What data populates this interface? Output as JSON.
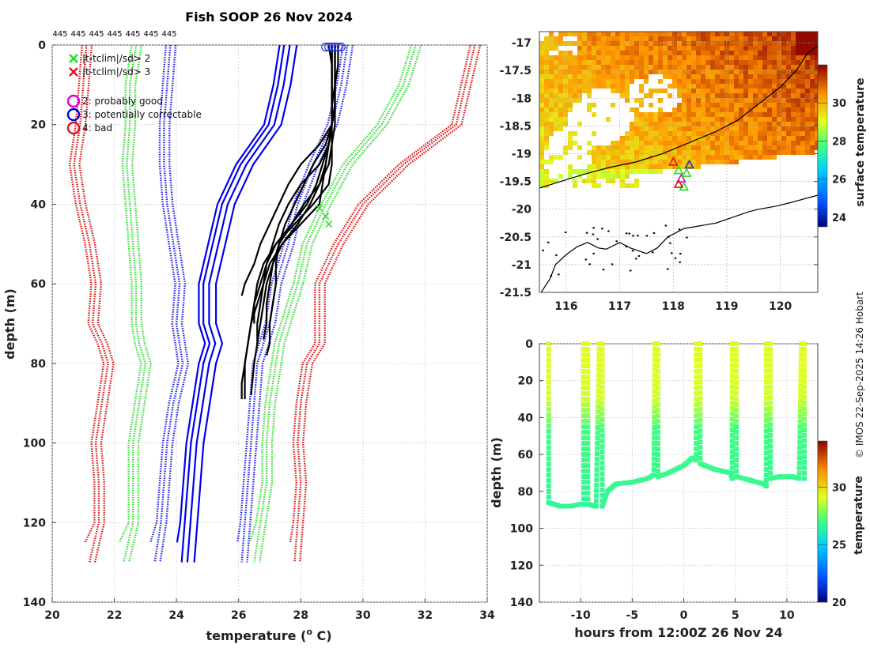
{
  "credit": "© IMOS 22-Sep-2025 14:26 Hobart",
  "chart_data": [
    {
      "id": "profiles",
      "type": "line",
      "title": "Fish SOOP 26 Nov 2024",
      "xlabel": "temperature (",
      "xlabel_sup": "o",
      "xlabel_tail": " C)",
      "ylabel": "depth (m)",
      "xlim": [
        20,
        34
      ],
      "ylim": [
        0,
        140
      ],
      "xticks": [
        "20",
        "22",
        "24",
        "26",
        "28",
        "30",
        "32",
        "34"
      ],
      "yticks": [
        "0",
        "20",
        "40",
        "60",
        "80",
        "100",
        "120",
        "140"
      ],
      "top_counts": [
        "445",
        "445",
        "445",
        "445",
        "445",
        "445",
        "445"
      ],
      "legend": [
        {
          "marker": "x",
          "color": "#22dd22",
          "label": "|t-tclim|/sd> 2"
        },
        {
          "marker": "x",
          "color": "#dd1111",
          "label": "|t-tclim|/sd> 3"
        },
        {
          "marker": "o",
          "color": "#dd00dd",
          "label": "2: probably good"
        },
        {
          "marker": "o",
          "color": "#0000dd",
          "label": "3: potentially correctable"
        },
        {
          "marker": "o",
          "color": "#dd1111",
          "label": "4: bad"
        }
      ],
      "clim_depths": [
        0,
        10,
        20,
        30,
        40,
        50,
        60,
        70,
        75,
        80,
        90,
        100,
        110,
        120,
        130
      ],
      "clim_series": [
        {
          "name": "mean -3sd",
          "color": "#dd1111",
          "temps": [
            21.1,
            21.0,
            20.9,
            20.7,
            20.9,
            21.2,
            21.4,
            21.3,
            21.6,
            21.8,
            21.6,
            21.4,
            21.5,
            21.5,
            21.2
          ]
        },
        {
          "name": "mean -2sd",
          "color": "#33dd33",
          "temps": [
            22.7,
            22.5,
            22.5,
            22.4,
            22.5,
            22.6,
            22.7,
            22.7,
            22.8,
            23.0,
            22.8,
            22.6,
            22.6,
            22.6,
            22.3
          ]
        },
        {
          "name": "mean -1sd",
          "color": "#2222ee",
          "temps": [
            23.8,
            23.7,
            23.6,
            23.6,
            23.7,
            23.9,
            24.1,
            24.0,
            24.1,
            24.2,
            23.9,
            23.7,
            23.6,
            23.5,
            23.3
          ]
        },
        {
          "name": "mean",
          "color": "#0000ee",
          "temps": [
            27.6,
            27.4,
            27.1,
            26.2,
            25.6,
            25.3,
            25.0,
            25.0,
            25.2,
            25.0,
            24.8,
            24.6,
            24.5,
            24.4,
            24.3
          ]
        },
        {
          "name": "mean +1sd",
          "color": "#2222ee",
          "temps": [
            29.5,
            29.3,
            29.0,
            28.4,
            27.9,
            27.6,
            27.2,
            27.0,
            26.8,
            26.6,
            26.5,
            26.4,
            26.3,
            26.2,
            26.1
          ]
        },
        {
          "name": "mean +2sd",
          "color": "#33dd33",
          "temps": [
            31.7,
            31.3,
            30.6,
            29.5,
            28.8,
            28.2,
            27.9,
            27.5,
            27.3,
            27.2,
            27.0,
            26.9,
            26.9,
            26.7,
            26.5
          ]
        },
        {
          "name": "mean +3sd",
          "color": "#dd1111",
          "temps": [
            33.6,
            33.3,
            33.0,
            31.3,
            30.0,
            29.2,
            28.6,
            28.6,
            28.6,
            28.2,
            28.0,
            27.9,
            28.0,
            27.9,
            27.8
          ]
        }
      ],
      "obs_profiles": [
        {
          "depths": [
            0,
            5,
            10,
            15,
            20,
            25,
            30,
            35,
            40,
            45,
            50,
            55,
            60,
            65,
            70,
            75,
            80,
            85,
            89
          ],
          "temps": [
            29.0,
            29.0,
            29.0,
            29.0,
            29.0,
            29.0,
            29.0,
            28.9,
            28.4,
            27.8,
            27.2,
            26.9,
            26.7,
            26.5,
            26.4,
            26.3,
            26.2,
            26.2,
            26.2
          ]
        },
        {
          "depths": [
            0,
            5,
            10,
            15,
            20,
            25,
            30,
            35,
            40,
            45,
            50,
            55,
            60,
            65,
            70,
            75
          ],
          "temps": [
            29.1,
            29.1,
            29.1,
            29.1,
            29.0,
            28.9,
            28.6,
            28.0,
            27.6,
            27.3,
            27.1,
            26.9,
            26.8,
            26.7,
            26.6,
            26.6
          ]
        },
        {
          "depths": [
            0,
            5,
            10,
            15,
            20,
            25,
            30,
            35,
            40,
            45,
            50,
            55,
            60,
            65,
            70,
            75,
            80,
            88
          ],
          "temps": [
            28.9,
            29.0,
            29.0,
            29.0,
            29.0,
            28.9,
            28.8,
            28.6,
            28.1,
            27.7,
            27.3,
            27.1,
            26.9,
            26.8,
            26.7,
            26.6,
            26.5,
            26.4
          ]
        },
        {
          "depths": [
            0,
            5,
            10,
            15,
            20,
            25,
            30,
            35,
            40,
            45,
            50,
            55,
            60,
            63
          ],
          "temps": [
            29.2,
            29.2,
            29.1,
            29.1,
            29.0,
            28.6,
            28.0,
            27.6,
            27.3,
            27.0,
            26.7,
            26.5,
            26.2,
            26.1
          ]
        },
        {
          "depths": [
            0,
            5,
            10,
            15,
            20,
            25,
            30,
            35,
            40,
            45,
            50,
            55,
            60,
            65,
            70,
            75,
            78
          ],
          "temps": [
            29.0,
            29.0,
            29.0,
            29.0,
            29.0,
            28.8,
            28.4,
            28.1,
            27.8,
            27.5,
            27.3,
            27.2,
            27.2,
            27.1,
            27.0,
            27.0,
            26.9
          ]
        },
        {
          "depths": [
            0,
            5,
            10,
            15,
            20,
            25,
            30,
            35,
            40,
            45,
            50,
            55,
            60,
            65,
            70
          ],
          "temps": [
            29.1,
            29.1,
            29.1,
            29.0,
            29.0,
            28.9,
            28.7,
            28.5,
            28.2,
            27.7,
            27.2,
            26.8,
            26.6,
            26.5,
            26.5
          ]
        },
        {
          "depths": [
            0,
            5,
            10,
            15,
            20,
            25,
            30,
            35,
            40,
            45,
            50,
            55,
            60,
            65,
            70,
            75,
            80,
            85,
            89
          ],
          "temps": [
            29.0,
            29.0,
            29.0,
            29.0,
            29.0,
            28.9,
            28.8,
            28.7,
            28.6,
            28.0,
            27.4,
            27.0,
            26.8,
            26.6,
            26.4,
            26.3,
            26.2,
            26.1,
            26.1
          ]
        },
        {
          "depths": [
            0,
            5,
            10,
            15,
            20,
            25,
            30,
            35,
            40,
            45,
            50,
            55,
            60,
            65,
            70,
            74
          ],
          "temps": [
            29.1,
            29.1,
            29.1,
            29.1,
            29.1,
            29.0,
            28.9,
            28.6,
            28.3,
            27.9,
            27.4,
            27.1,
            27.0,
            26.9,
            26.9,
            26.8
          ]
        }
      ],
      "flag_circles": [
        [
          28.8,
          0.5
        ],
        [
          28.9,
          0.5
        ],
        [
          29.0,
          0.5
        ],
        [
          29.1,
          0.5
        ],
        [
          29.2,
          0.5
        ],
        [
          29.3,
          0.5
        ]
      ],
      "flag_crosses": [
        [
          28.6,
          41
        ],
        [
          28.8,
          43
        ],
        [
          28.9,
          45
        ]
      ]
    },
    {
      "id": "map",
      "type": "heatmap",
      "colorbar_label": "surface temperature",
      "xlim": [
        115.5,
        120.7
      ],
      "ylim": [
        -21.5,
        -16.8
      ],
      "clim": [
        23.5,
        32
      ],
      "xticks": [
        "116",
        "117",
        "118",
        "119",
        "120"
      ],
      "yticks": [
        "-17",
        "-17.5",
        "-18",
        "-18.5",
        "-19",
        "-19.5",
        "-20",
        "-20.5",
        "-21",
        "-21.5"
      ],
      "cbar_ticks": [
        "24",
        "26",
        "28",
        "30"
      ],
      "coast_main": [
        [
          115.5,
          -21.55
        ],
        [
          115.7,
          -21.25
        ],
        [
          115.8,
          -21.0
        ],
        [
          116.0,
          -20.82
        ],
        [
          116.2,
          -20.68
        ],
        [
          116.4,
          -20.6
        ],
        [
          116.6,
          -20.7
        ],
        [
          116.75,
          -20.72
        ],
        [
          117.0,
          -20.6
        ],
        [
          117.2,
          -20.7
        ],
        [
          117.5,
          -20.8
        ],
        [
          117.7,
          -20.7
        ],
        [
          117.9,
          -20.5
        ],
        [
          118.2,
          -20.35
        ],
        [
          118.5,
          -20.3
        ],
        [
          118.8,
          -20.25
        ],
        [
          119.1,
          -20.15
        ],
        [
          119.4,
          -20.05
        ],
        [
          119.6,
          -20.0
        ],
        [
          119.9,
          -19.95
        ],
        [
          120.2,
          -19.88
        ],
        [
          120.5,
          -19.8
        ],
        [
          120.7,
          -19.75
        ]
      ],
      "isobath": [
        [
          115.5,
          -19.62
        ],
        [
          115.9,
          -19.5
        ],
        [
          116.3,
          -19.38
        ],
        [
          116.8,
          -19.25
        ],
        [
          117.3,
          -19.15
        ],
        [
          117.8,
          -19.0
        ],
        [
          118.3,
          -18.8
        ],
        [
          118.8,
          -18.6
        ],
        [
          119.2,
          -18.4
        ],
        [
          119.6,
          -18.1
        ],
        [
          120.0,
          -17.8
        ],
        [
          120.3,
          -17.5
        ],
        [
          120.5,
          -17.2
        ],
        [
          120.7,
          -17.05
        ]
      ],
      "tracks": [
        [
          118.0,
          -19.15
        ],
        [
          118.1,
          -19.3
        ],
        [
          118.15,
          -19.45
        ],
        [
          118.2,
          -19.6
        ],
        [
          118.3,
          -19.2
        ],
        [
          118.1,
          -19.55
        ],
        [
          118.25,
          -19.35
        ]
      ]
    },
    {
      "id": "depth_time",
      "type": "scatter",
      "xlabel": "hours from 12:00Z 26 Nov 24",
      "ylabel": "depth (m)",
      "colorbar_label": "temperature",
      "xlim": [
        -14,
        13
      ],
      "ylim": [
        0,
        140
      ],
      "clim": [
        20,
        34
      ],
      "xticks": [
        "-10",
        "-5",
        "0",
        "5",
        "10"
      ],
      "yticks": [
        "0",
        "20",
        "40",
        "60",
        "80",
        "100",
        "120",
        "140"
      ],
      "cbar_ticks": [
        "20",
        "25",
        "30"
      ],
      "track": [
        [
          -13.1,
          0
        ],
        [
          -13.1,
          86
        ],
        [
          -12.0,
          88
        ],
        [
          -11.0,
          88
        ],
        [
          -10.0,
          87
        ],
        [
          -9.7,
          87
        ],
        [
          -9.7,
          0
        ],
        [
          -9.3,
          0
        ],
        [
          -9.3,
          87
        ],
        [
          -8.5,
          88
        ],
        [
          -8.2,
          0
        ],
        [
          -7.9,
          0
        ],
        [
          -7.9,
          88
        ],
        [
          -7.4,
          80
        ],
        [
          -6.6,
          76
        ],
        [
          -5.0,
          75
        ],
        [
          -3.5,
          73
        ],
        [
          -2.9,
          71
        ],
        [
          -2.8,
          0
        ],
        [
          -2.5,
          0
        ],
        [
          -2.5,
          72
        ],
        [
          -1.5,
          70
        ],
        [
          0.0,
          66
        ],
        [
          0.8,
          62
        ],
        [
          1.2,
          63
        ],
        [
          1.2,
          0
        ],
        [
          1.6,
          0
        ],
        [
          1.6,
          65
        ],
        [
          3.0,
          68
        ],
        [
          4.5,
          70
        ],
        [
          4.7,
          73
        ],
        [
          4.7,
          0
        ],
        [
          5.1,
          0
        ],
        [
          5.1,
          72
        ],
        [
          6.5,
          74
        ],
        [
          7.8,
          76
        ],
        [
          8.0,
          77
        ],
        [
          8.0,
          0
        ],
        [
          8.4,
          0
        ],
        [
          8.4,
          73
        ],
        [
          9.3,
          72
        ],
        [
          10.5,
          72
        ],
        [
          11.2,
          73
        ],
        [
          11.4,
          0
        ],
        [
          11.7,
          0
        ],
        [
          11.7,
          73
        ]
      ]
    }
  ]
}
